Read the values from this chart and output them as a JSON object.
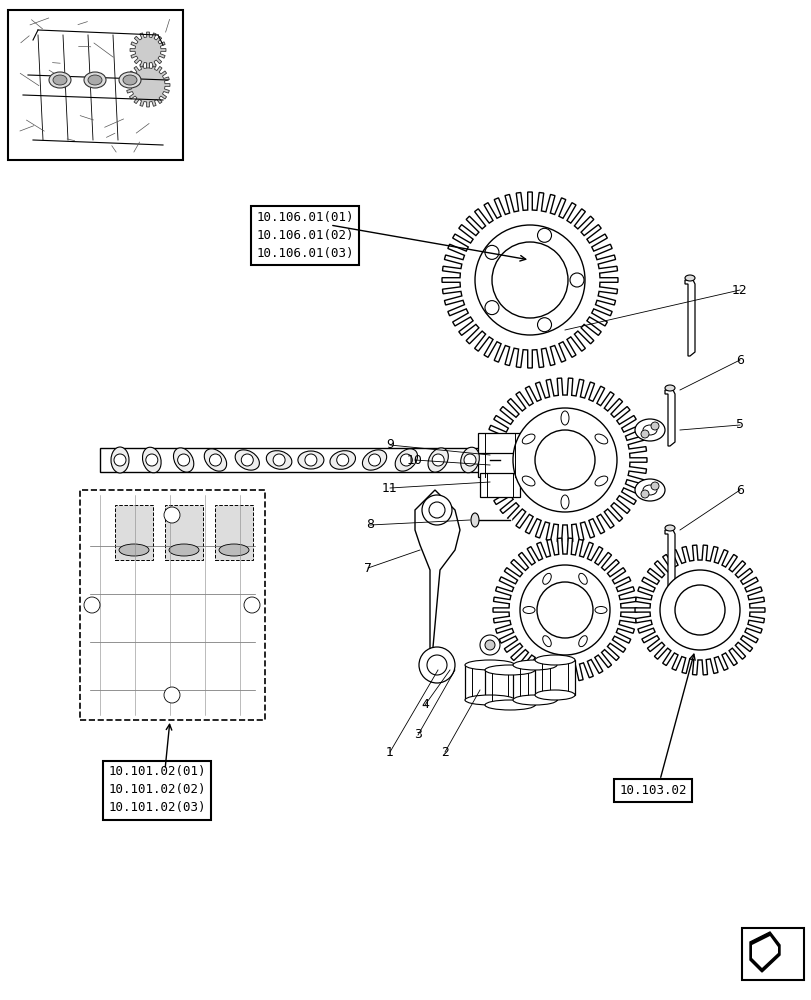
{
  "bg_color": "#ffffff",
  "line_color": "#000000",
  "box_label_top": [
    "10.106.01(01)",
    "10.106.01(02)",
    "10.106.01(03)"
  ],
  "box_label_bottom_left": [
    "10.101.02(01)",
    "10.101.02(02)",
    "10.101.02(03)"
  ],
  "box_label_bottom_right": "10.103.02",
  "part_numbers": [
    "1",
    "2",
    "3",
    "4",
    "5",
    "6",
    "7",
    "8",
    "9",
    "10",
    "11",
    "12"
  ],
  "title": "",
  "figsize": [
    8.12,
    10.0
  ],
  "dpi": 100
}
